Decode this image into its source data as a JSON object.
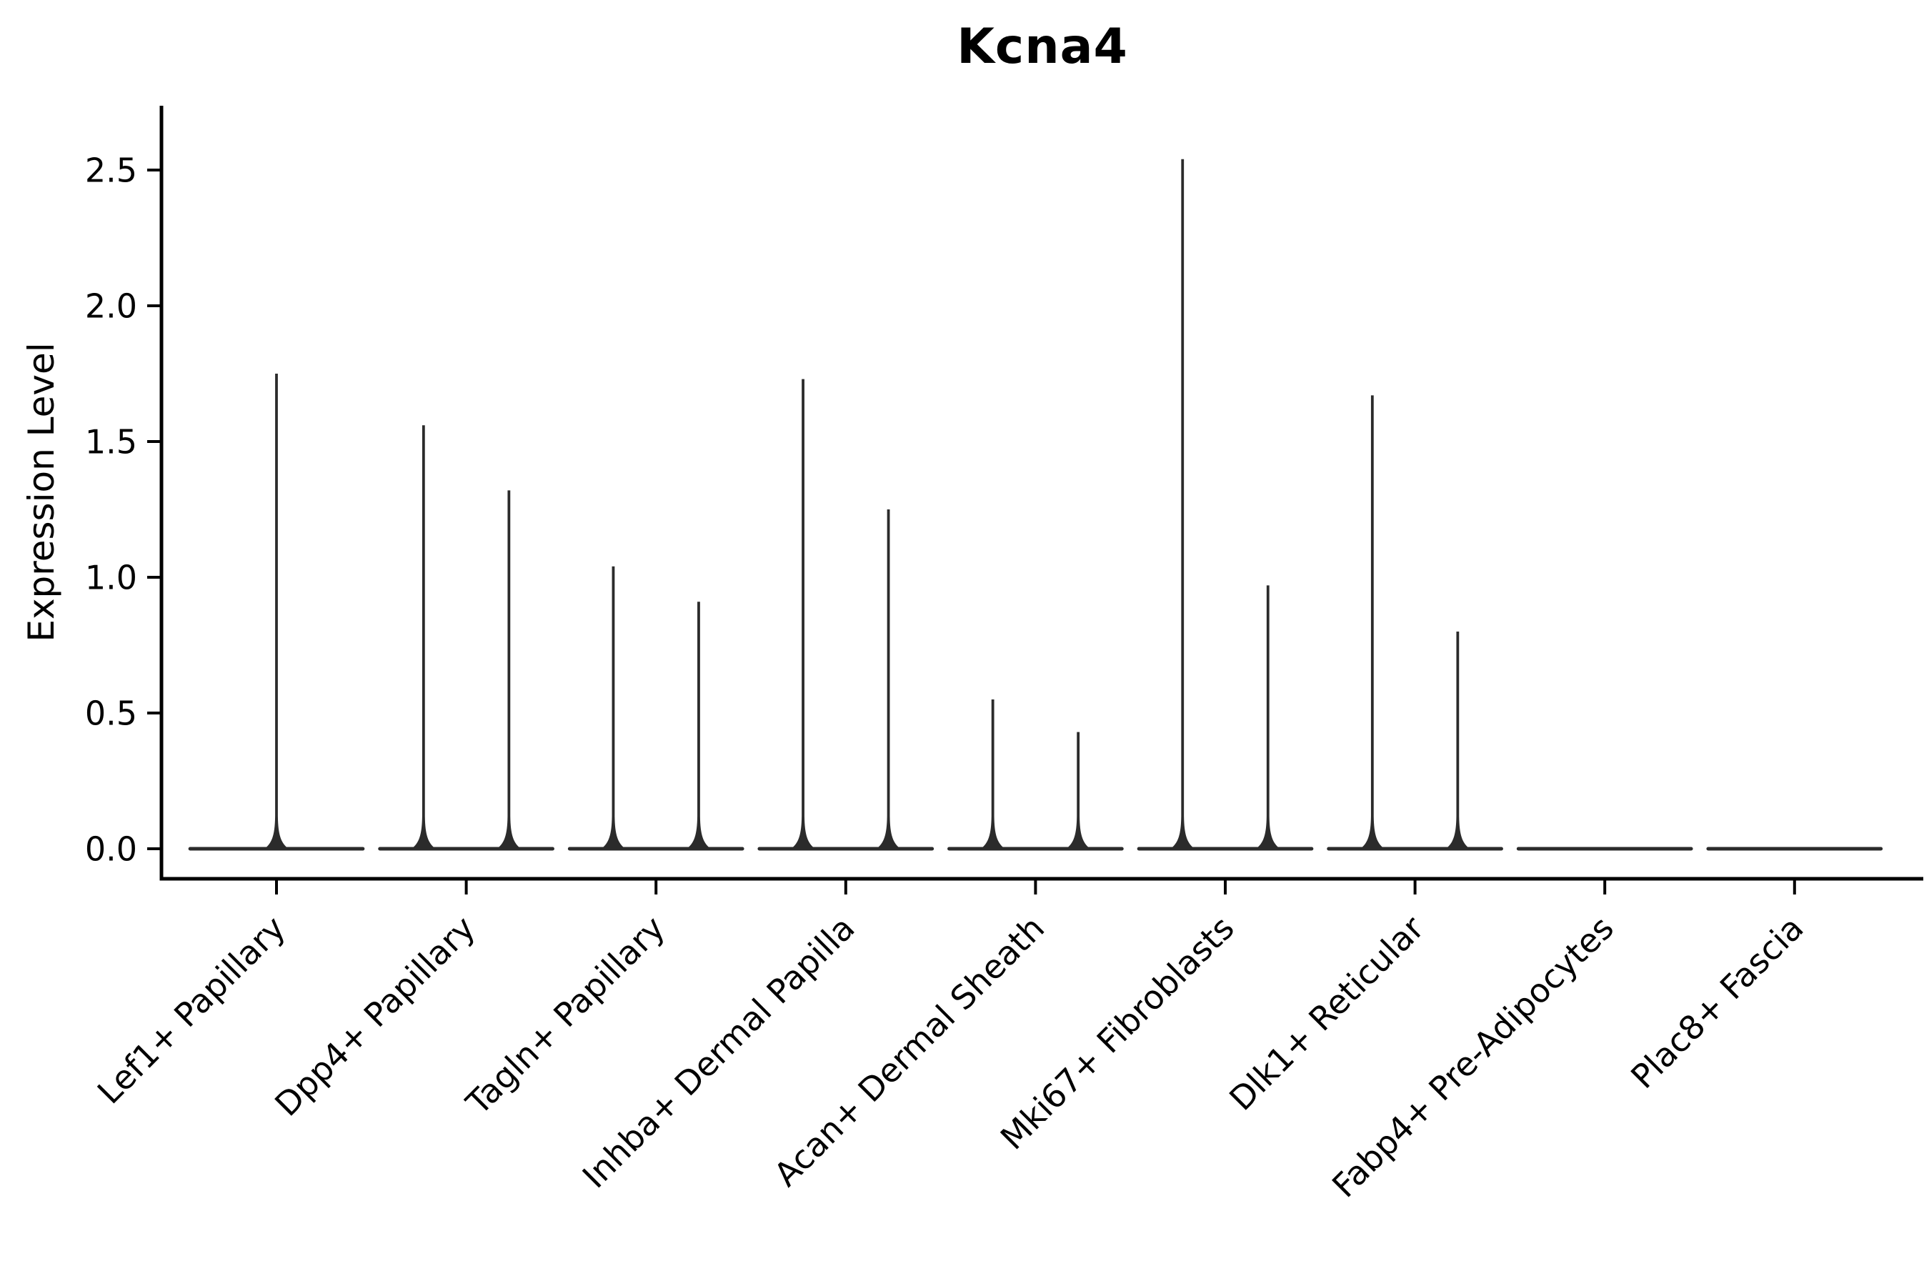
{
  "chart_data": {
    "type": "violin",
    "title": "Kcna4",
    "ylabel": "Expression Level",
    "xlabel": "",
    "yticks": [
      "0.0",
      "0.5",
      "1.0",
      "1.5",
      "2.0",
      "2.5"
    ],
    "ylim": [
      -0.11,
      2.74
    ],
    "grid": false,
    "legend": null,
    "background_color": "#ffffff",
    "violin_color": "#2b2b2b",
    "axis_color": "#000000",
    "x_tick_label_rotation": 45,
    "categories": [
      "Lef1+ Papillary",
      "Dpp4+ Papillary",
      "Tagln+ Papillary",
      "Inhba+ Dermal Papilla",
      "Acan+ Dermal Sheath",
      "Mki67+ Fibroblasts",
      "Dlk1+ Reticular",
      "Fabp4+ Pre-Adipocytes",
      "Plac8+ Fascia"
    ],
    "series": [
      {
        "category": "Lef1+ Papillary",
        "baseline": 0.0,
        "violins": [
          {
            "pos": 0.0,
            "max": 1.75
          }
        ]
      },
      {
        "category": "Dpp4+ Papillary",
        "baseline": 0.0,
        "violins": [
          {
            "pos": -0.225,
            "max": 1.56
          },
          {
            "pos": 0.225,
            "max": 1.32
          }
        ]
      },
      {
        "category": "Tagln+ Papillary",
        "baseline": 0.0,
        "violins": [
          {
            "pos": -0.225,
            "max": 1.04
          },
          {
            "pos": 0.225,
            "max": 0.91
          }
        ]
      },
      {
        "category": "Inhba+ Dermal Papilla",
        "baseline": 0.0,
        "violins": [
          {
            "pos": -0.225,
            "max": 1.73
          },
          {
            "pos": 0.225,
            "max": 1.25
          }
        ]
      },
      {
        "category": "Acan+ Dermal Sheath",
        "baseline": 0.0,
        "violins": [
          {
            "pos": -0.225,
            "max": 0.55
          },
          {
            "pos": 0.225,
            "max": 0.43
          }
        ]
      },
      {
        "category": "Mki67+ Fibroblasts",
        "baseline": 0.0,
        "violins": [
          {
            "pos": -0.225,
            "max": 2.54
          },
          {
            "pos": 0.225,
            "max": 0.97
          }
        ]
      },
      {
        "category": "Dlk1+ Reticular",
        "baseline": 0.0,
        "violins": [
          {
            "pos": -0.225,
            "max": 1.67
          },
          {
            "pos": 0.225,
            "max": 0.8
          }
        ]
      },
      {
        "category": "Fabp4+ Pre-Adipocytes",
        "baseline": 0.0,
        "violins": []
      },
      {
        "category": "Plac8+ Fascia",
        "baseline": 0.0,
        "violins": []
      }
    ],
    "base_halfwidth": 0.455
  }
}
